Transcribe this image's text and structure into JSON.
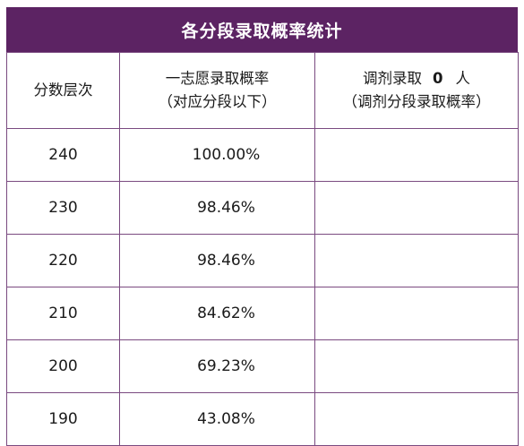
{
  "table": {
    "title": "各分段录取概率统计",
    "headers": {
      "score_band": "分数层次",
      "first_choice_line1": "一志愿录取概率",
      "first_choice_line2": "（对应分段以下）",
      "adjust_prefix": "调剂录取",
      "adjust_count": "0",
      "adjust_unit": "人",
      "adjust_line2": "（调剂分段录取概率）"
    },
    "rows": [
      {
        "score": "240",
        "first_choice": "100.00%",
        "adjusted": ""
      },
      {
        "score": "230",
        "first_choice": "98.46%",
        "adjusted": ""
      },
      {
        "score": "220",
        "first_choice": "98.46%",
        "adjusted": ""
      },
      {
        "score": "210",
        "first_choice": "84.62%",
        "adjusted": ""
      },
      {
        "score": "200",
        "first_choice": "69.23%",
        "adjusted": ""
      },
      {
        "score": "190",
        "first_choice": "43.08%",
        "adjusted": ""
      }
    ]
  }
}
